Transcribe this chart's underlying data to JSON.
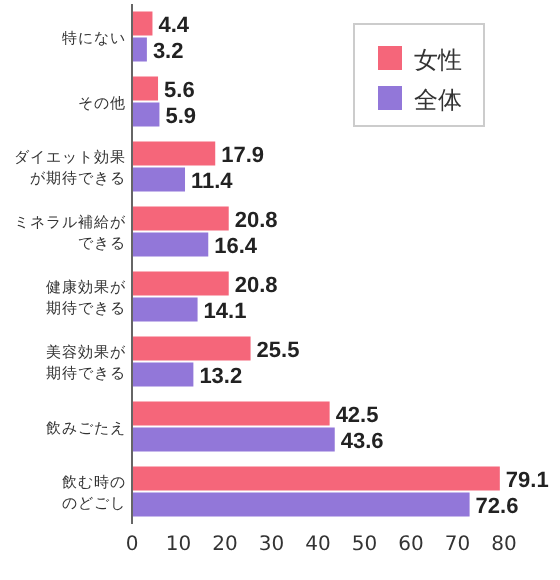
{
  "chart_data": {
    "type": "bar",
    "orientation": "horizontal",
    "categories": [
      "特にない",
      "その他",
      "ダイエット効果が期待できる",
      "ミネラル補給ができる",
      "健康効果が期待できる",
      "美容効果が期待できる",
      "飲みごたえ",
      "飲む時ののどごし"
    ],
    "series": [
      {
        "name": "女性",
        "color": "#f5667a",
        "values": [
          4.4,
          5.6,
          17.9,
          20.8,
          20.8,
          25.5,
          42.5,
          79.1
        ]
      },
      {
        "name": "全体",
        "color": "#9277d9",
        "values": [
          3.2,
          5.9,
          11.4,
          16.4,
          14.1,
          13.2,
          43.6,
          72.6
        ]
      }
    ],
    "xlim": [
      0,
      80
    ],
    "xticks": [
      0,
      10,
      20,
      30,
      40,
      50,
      60,
      70,
      80
    ],
    "data_labels": true,
    "legend": "top right",
    "grid": false
  }
}
